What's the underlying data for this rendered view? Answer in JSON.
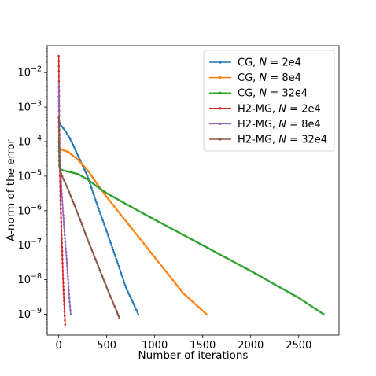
{
  "chart_data": {
    "type": "line",
    "xlabel": "Number of iterations",
    "ylabel": "A-norm of the error",
    "xscale": "linear",
    "yscale": "log",
    "xlim": [
      -120,
      2920
    ],
    "ylim": [
      2.5e-10,
      0.06
    ],
    "xticks": [
      0,
      500,
      1000,
      1500,
      2000,
      2500
    ],
    "xtick_labels": [
      "0",
      "500",
      "1000",
      "1500",
      "2000",
      "2500"
    ],
    "yticks": [
      1e-09,
      1e-08,
      1e-07,
      1e-06,
      1e-05,
      0.0001,
      0.001,
      0.01
    ],
    "ytick_labels": [
      {
        "base": "10",
        "exp": "−9"
      },
      {
        "base": "10",
        "exp": "−8"
      },
      {
        "base": "10",
        "exp": "−7"
      },
      {
        "base": "10",
        "exp": "−6"
      },
      {
        "base": "10",
        "exp": "−5"
      },
      {
        "base": "10",
        "exp": "−4"
      },
      {
        "base": "10",
        "exp": "−3"
      },
      {
        "base": "10",
        "exp": "−2"
      }
    ],
    "grid": false,
    "legend_position": "top-right",
    "series": [
      {
        "name_prefix": "CG, ",
        "name_var": "N",
        "name_suffix": " = 2e4",
        "color": "#1f77b4",
        "x": [
          0,
          5,
          20,
          60,
          100,
          150,
          200,
          300,
          400,
          500,
          600,
          700,
          830
        ],
        "y": [
          0.002,
          0.0004,
          0.0003,
          0.00022,
          0.00015,
          8e-05,
          4e-05,
          1e-05,
          1.5e-06,
          2.5e-07,
          4e-08,
          6e-09,
          1e-09
        ]
      },
      {
        "name_prefix": "CG, ",
        "name_var": "N",
        "name_suffix": " = 8e4",
        "color": "#ff7f0e",
        "x": [
          0,
          5,
          20,
          100,
          200,
          300,
          400,
          500,
          700,
          900,
          1100,
          1300,
          1540
        ],
        "y": [
          0.0005,
          7e-05,
          6e-05,
          5e-05,
          3e-05,
          1.5e-05,
          6e-06,
          2.5e-06,
          5e-07,
          1e-07,
          2e-08,
          4e-09,
          1e-09
        ]
      },
      {
        "name_prefix": "CG, ",
        "name_var": "N",
        "name_suffix": " = 32e4",
        "color": "#2ca02c",
        "x": [
          0,
          5,
          15,
          50,
          100,
          200,
          300,
          400,
          500,
          800,
          1000,
          1500,
          2000,
          2500,
          2760
        ],
        "y": [
          0.0001,
          2e-05,
          1.6e-05,
          1.45e-05,
          1.35e-05,
          1.15e-05,
          8e-06,
          5e-06,
          3.2e-06,
          1.1e-06,
          5.5e-07,
          1e-07,
          1.8e-08,
          3e-09,
          1e-09
        ]
      },
      {
        "name_prefix": "H2-MG, ",
        "name_var": "N",
        "name_suffix": " = 2e4",
        "color": "#d62728",
        "x": [
          0,
          3,
          6,
          10,
          15,
          20,
          30,
          40,
          50,
          60,
          67
        ],
        "y": [
          0.03,
          0.004,
          0.0003,
          2e-05,
          5e-06,
          1.5e-06,
          2e-07,
          3e-08,
          5e-09,
          1.2e-09,
          5e-10
        ]
      },
      {
        "name_prefix": "H2-MG, ",
        "name_var": "N",
        "name_suffix": " = 8e4",
        "color": "#9467bd",
        "x": [
          0,
          5,
          10,
          20,
          30,
          40,
          50,
          60,
          70,
          80,
          90,
          100,
          110,
          125
        ],
        "y": [
          0.005,
          0.0004,
          4e-05,
          1.2e-05,
          4e-06,
          1.5e-06,
          6e-07,
          2.5e-07,
          1e-07,
          5e-08,
          2e-08,
          8e-09,
          3e-09,
          1e-09
        ]
      },
      {
        "name_prefix": "H2-MG, ",
        "name_var": "N",
        "name_suffix": " = 32e4",
        "color": "#8c564b",
        "x": [
          0,
          10,
          25,
          50,
          100,
          150,
          200,
          250,
          300,
          400,
          500,
          600,
          630
        ],
        "y": [
          0.0005,
          2e-05,
          1.2e-05,
          8e-06,
          4e-06,
          1.8e-06,
          8e-07,
          3.5e-07,
          1.5e-07,
          3e-08,
          6e-09,
          1.3e-09,
          8e-10
        ]
      }
    ]
  }
}
